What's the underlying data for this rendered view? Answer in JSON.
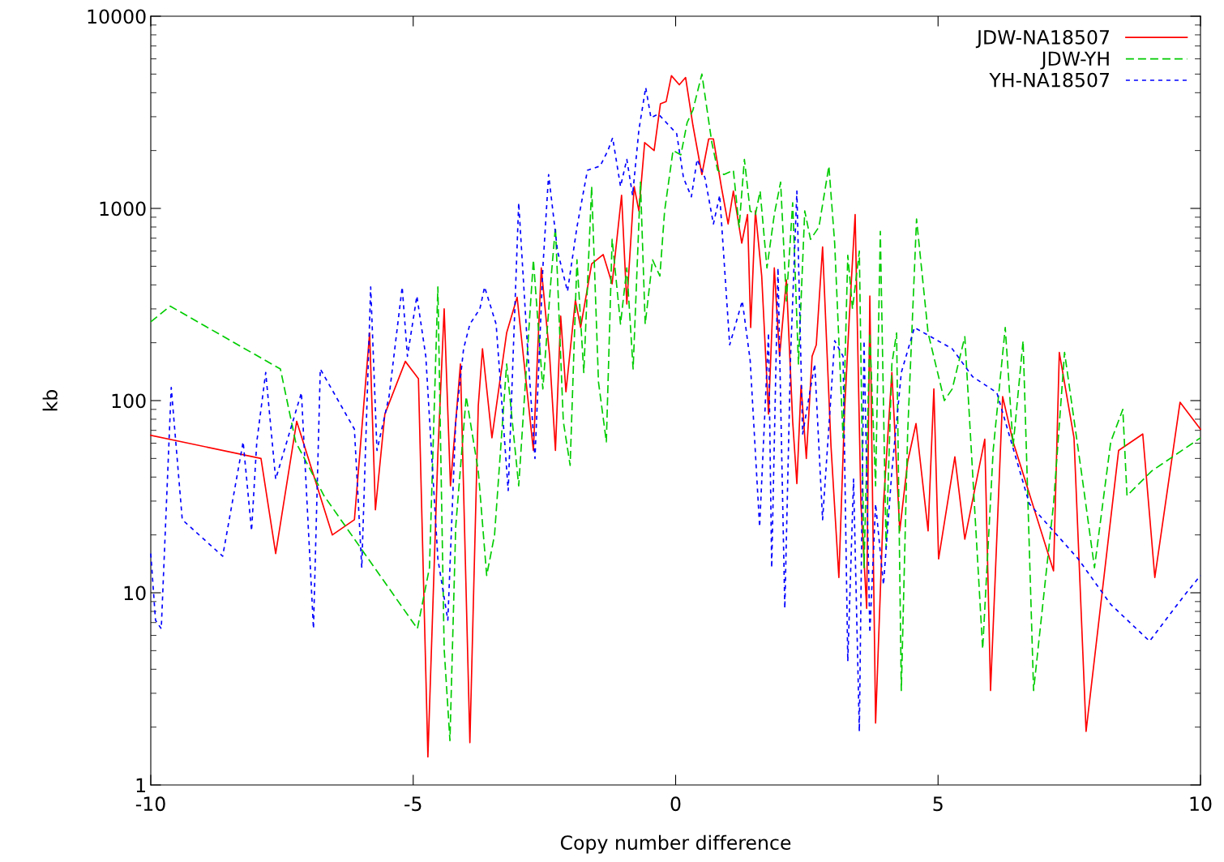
{
  "chart_data": {
    "type": "line",
    "xlabel": "Copy number difference",
    "ylabel": "kb",
    "log": "y",
    "xlim": [
      -10,
      10
    ],
    "ylim": [
      1,
      10000
    ],
    "xticks": [
      -10,
      -5,
      0,
      5,
      10
    ],
    "yticks": [
      1,
      10,
      100,
      1000,
      10000
    ],
    "grid": false,
    "legend": "top right",
    "marker": "none",
    "series": [
      {
        "name": "JDW-NA18507",
        "color": "#ff0000",
        "line_style": "solid",
        "x": [
          -10,
          -7.9,
          -7.62,
          -7.22,
          -6.54,
          -6.12,
          -5.83,
          -5.72,
          -5.54,
          -5.15,
          -4.9,
          -4.72,
          -4.53,
          -4.41,
          -4.29,
          -4.1,
          -3.92,
          -3.76,
          -3.68,
          -3.5,
          -3.22,
          -3.02,
          -2.71,
          -2.56,
          -2.4,
          -2.29,
          -2.19,
          -2.09,
          -1.91,
          -1.81,
          -1.6,
          -1.38,
          -1.21,
          -1.03,
          -0.93,
          -0.79,
          -0.7,
          -0.59,
          -0.41,
          -0.29,
          -0.18,
          -0.08,
          0.07,
          0.19,
          0.33,
          0.5,
          0.63,
          0.72,
          0.87,
          1.0,
          1.1,
          1.26,
          1.37,
          1.43,
          1.52,
          1.64,
          1.77,
          1.88,
          1.98,
          2.11,
          2.23,
          2.31,
          2.39,
          2.49,
          2.6,
          2.68,
          2.8,
          2.96,
          3.11,
          3.22,
          3.31,
          3.42,
          3.53,
          3.64,
          3.7,
          3.81,
          3.96,
          4.12,
          4.27,
          4.42,
          4.58,
          4.81,
          4.92,
          5.01,
          5.32,
          5.51,
          5.89,
          6.0,
          6.23,
          6.43,
          7.2,
          7.31,
          7.59,
          7.82,
          8.44,
          8.9,
          9.13,
          9.61,
          10
        ],
        "values": [
          66,
          50,
          16,
          78,
          20,
          24,
          225,
          27,
          85,
          160,
          130,
          1.4,
          53,
          300,
          36,
          155,
          1.66,
          94,
          186,
          64,
          225,
          345,
          55,
          490,
          170,
          55,
          275,
          111,
          333,
          240,
          515,
          575,
          405,
          1170,
          318,
          1300,
          970,
          2200,
          2000,
          3500,
          3600,
          4900,
          4400,
          4800,
          2700,
          1500,
          2300,
          2300,
          1300,
          830,
          1230,
          660,
          930,
          240,
          970,
          445,
          85,
          490,
          170,
          425,
          78,
          37,
          120,
          50,
          170,
          195,
          630,
          58,
          12,
          90,
          275,
          930,
          29,
          8.3,
          350,
          2.1,
          29,
          140,
          21,
          48,
          76,
          21,
          115,
          15,
          51,
          19,
          63,
          3.1,
          105,
          61,
          13,
          178,
          64,
          1.9,
          55,
          67,
          12,
          98,
          71
        ]
      },
      {
        "name": "JDW-YH",
        "color": "#00cc00",
        "line_style": "dashed",
        "x": [
          -10,
          -9.63,
          -7.53,
          -7.24,
          -6.7,
          -4.92,
          -4.69,
          -4.53,
          -4.41,
          -4.3,
          -4.19,
          -3.99,
          -3.76,
          -3.6,
          -3.45,
          -3.22,
          -2.99,
          -2.71,
          -2.53,
          -2.37,
          -2.29,
          -2.14,
          -2.01,
          -1.88,
          -1.75,
          -1.6,
          -1.47,
          -1.32,
          -1.21,
          -1.05,
          -0.93,
          -0.81,
          -0.67,
          -0.58,
          -0.44,
          -0.3,
          -0.21,
          -0.05,
          0.1,
          0.22,
          0.33,
          0.5,
          0.69,
          0.8,
          0.92,
          1.1,
          1.21,
          1.31,
          1.42,
          1.52,
          1.61,
          1.74,
          1.88,
          2.0,
          2.11,
          2.23,
          2.34,
          2.46,
          2.57,
          2.73,
          2.92,
          3.03,
          3.19,
          3.28,
          3.37,
          3.5,
          3.59,
          3.7,
          3.81,
          3.9,
          4.01,
          4.12,
          4.21,
          4.3,
          4.42,
          4.59,
          4.81,
          5.12,
          5.27,
          5.51,
          5.85,
          6.05,
          6.28,
          6.43,
          6.62,
          6.82,
          7.2,
          7.41,
          7.75,
          7.98,
          8.29,
          8.52,
          8.6,
          9.07,
          10
        ],
        "values": [
          257,
          310,
          146,
          61,
          32,
          6.5,
          13.5,
          390,
          5.1,
          1.7,
          22,
          105,
          43,
          12.3,
          20,
          155,
          36,
          540,
          115,
          445,
          800,
          78,
          46,
          540,
          140,
          1300,
          125,
          61,
          690,
          250,
          490,
          146,
          1370,
          250,
          540,
          445,
          970,
          2000,
          1900,
          2800,
          3250,
          5000,
          2200,
          1580,
          1500,
          1580,
          800,
          1800,
          970,
          930,
          1230,
          490,
          930,
          1370,
          330,
          1070,
          155,
          970,
          690,
          800,
          1660,
          660,
          64,
          570,
          300,
          600,
          13.5,
          225,
          36,
          760,
          17,
          155,
          225,
          3.1,
          67,
          880,
          225,
          100,
          115,
          215,
          5.1,
          55,
          240,
          58,
          205,
          3.1,
          29,
          178,
          39,
          13.5,
          61,
          90,
          32,
          43,
          64
        ]
      },
      {
        "name": "YH-NA18507",
        "color": "#0000ff",
        "line_style": "dotted",
        "x": [
          -10,
          -9.91,
          -9.8,
          -9.61,
          -9.4,
          -8.63,
          -8.24,
          -8.08,
          -7.98,
          -7.81,
          -7.62,
          -7.13,
          -6.9,
          -6.77,
          -6.12,
          -5.98,
          -5.81,
          -5.69,
          -5.46,
          -5.21,
          -5.11,
          -4.93,
          -4.76,
          -4.53,
          -4.34,
          -4.19,
          -4.04,
          -3.92,
          -3.73,
          -3.64,
          -3.42,
          -3.19,
          -2.99,
          -2.83,
          -2.68,
          -2.53,
          -2.42,
          -2.25,
          -2.06,
          -1.88,
          -1.68,
          -1.44,
          -1.29,
          -1.2,
          -1.05,
          -0.93,
          -0.82,
          -0.7,
          -0.57,
          -0.47,
          -0.33,
          -0.18,
          0.02,
          0.15,
          0.3,
          0.41,
          0.56,
          0.72,
          0.84,
          1.03,
          1.27,
          1.42,
          1.6,
          1.77,
          1.83,
          1.95,
          2.08,
          2.19,
          2.31,
          2.42,
          2.65,
          2.8,
          3.03,
          3.19,
          3.28,
          3.39,
          3.5,
          3.59,
          3.7,
          3.81,
          3.96,
          4.12,
          4.3,
          4.55,
          5.27,
          5.66,
          6.12,
          6.74,
          7.67,
          8.29,
          9.03,
          9.68,
          10
        ],
        "values": [
          16,
          7.2,
          6.5,
          117,
          24,
          15.5,
          61,
          21,
          61,
          140,
          39,
          110,
          6.5,
          146,
          71,
          13.5,
          390,
          55,
          105,
          390,
          170,
          350,
          170,
          15,
          7.2,
          78,
          186,
          250,
          300,
          390,
          250,
          34,
          1070,
          205,
          50,
          490,
          1500,
          600,
          370,
          800,
          1580,
          1660,
          2000,
          2330,
          1300,
          1800,
          1170,
          2560,
          4260,
          2960,
          3100,
          2800,
          2450,
          1440,
          1150,
          1800,
          1440,
          830,
          1170,
          195,
          330,
          162,
          22,
          225,
          13.5,
          490,
          8.3,
          170,
          1230,
          67,
          155,
          24,
          205,
          170,
          4.4,
          39,
          1.9,
          205,
          6.2,
          29,
          11,
          43,
          140,
          240,
          186,
          133,
          110,
          29,
          15,
          8.7,
          5.6,
          9.6,
          12.3
        ]
      }
    ]
  }
}
